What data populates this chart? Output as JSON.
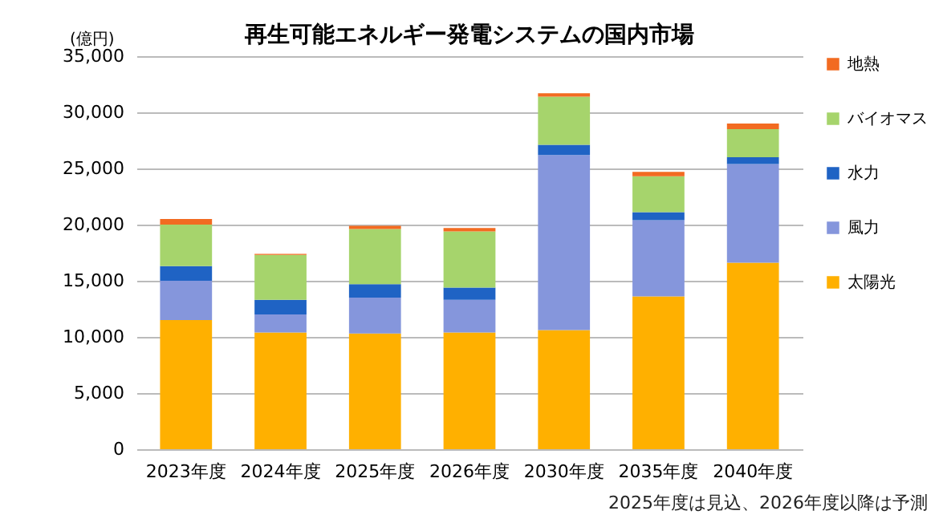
{
  "chart_data": {
    "type": "bar",
    "title": "再生可能エネルギー発電システムの国内市場",
    "ylabel": "(億円)",
    "annotations": [
      "2025年度は見込、2026年度以降は予測"
    ],
    "categories": [
      "2023年度",
      "2024年度",
      "2025年度",
      "2026年度",
      "2030年度",
      "2035年度",
      "2040年度"
    ],
    "stacked": true,
    "grid": "y",
    "legend": "right",
    "ylim": [
      0,
      35000
    ],
    "yticks": [
      {
        "value": 0,
        "label": "0"
      },
      {
        "value": 5000,
        "label": "5,000"
      },
      {
        "value": 10000,
        "label": "10,000"
      },
      {
        "value": 15000,
        "label": "15,000"
      },
      {
        "value": 20000,
        "label": "20,000"
      },
      {
        "value": 25000,
        "label": "25,000"
      },
      {
        "value": 30000,
        "label": "30,000"
      },
      {
        "value": 35000,
        "label": "35,000"
      }
    ],
    "series": [
      {
        "name": "太陽光",
        "color": "#ffb000",
        "values": [
          11500,
          10400,
          10300,
          10400,
          10600,
          13600,
          16600
        ]
      },
      {
        "name": "風力",
        "color": "#8596dc",
        "values": [
          3500,
          1600,
          3200,
          2900,
          15600,
          6800,
          8800
        ]
      },
      {
        "name": "水力",
        "color": "#1f63c4",
        "values": [
          1300,
          1300,
          1200,
          1100,
          900,
          700,
          600
        ]
      },
      {
        "name": "バイオマス",
        "color": "#a6d46c",
        "values": [
          3700,
          4000,
          4900,
          5000,
          4300,
          3200,
          2500
        ]
      },
      {
        "name": "地熱",
        "color": "#f26b21",
        "values": [
          500,
          100,
          300,
          300,
          300,
          400,
          500
        ]
      }
    ]
  }
}
